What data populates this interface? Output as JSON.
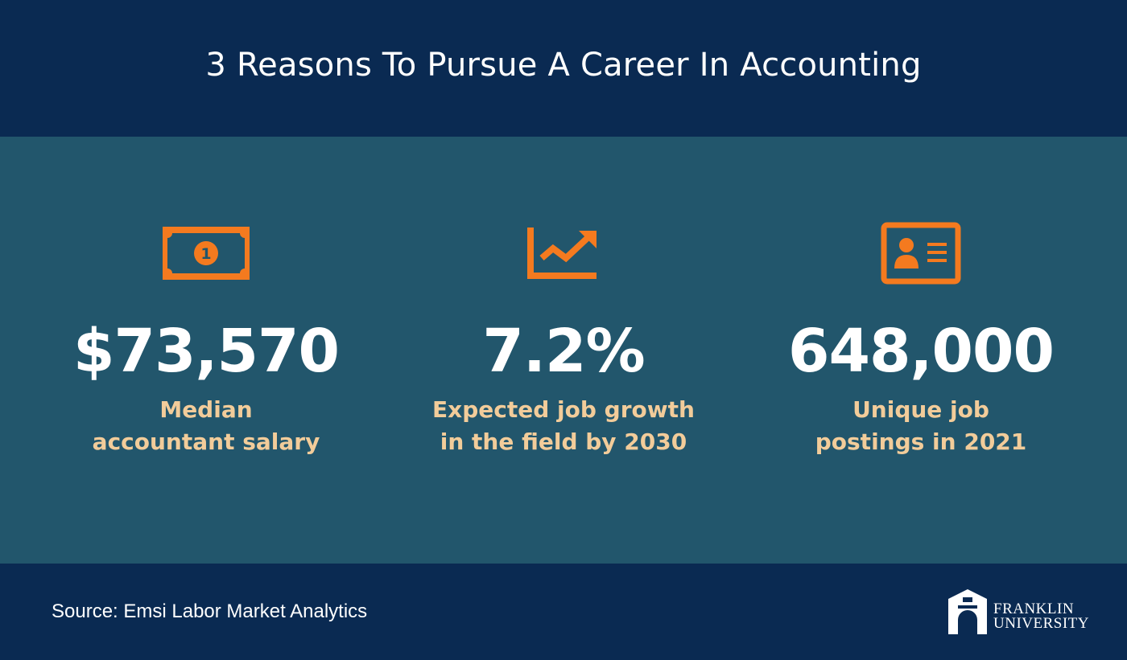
{
  "title": "3 Reasons To Pursue A Career In Accounting",
  "colors": {
    "navy": "#0a2a52",
    "teal": "#22566c",
    "orange": "#f47a1f",
    "label_tan": "#f2cc9a",
    "white": "#ffffff"
  },
  "stats": [
    {
      "icon": "money-bill-icon",
      "value": "$73,570",
      "label_line1": "Median",
      "label_line2": "accountant salary"
    },
    {
      "icon": "trend-up-chart-icon",
      "value": "7.2%",
      "label_line1": "Expected job growth",
      "label_line2": "in the field by 2030"
    },
    {
      "icon": "id-card-icon",
      "value": "648,000",
      "label_line1": "Unique job",
      "label_line2": "postings in 2021"
    }
  ],
  "footer": {
    "source": "Source: Emsi Labor Market Analytics",
    "logo_line1": "FRANKLIN",
    "logo_line2": "UNIVERSITY"
  }
}
